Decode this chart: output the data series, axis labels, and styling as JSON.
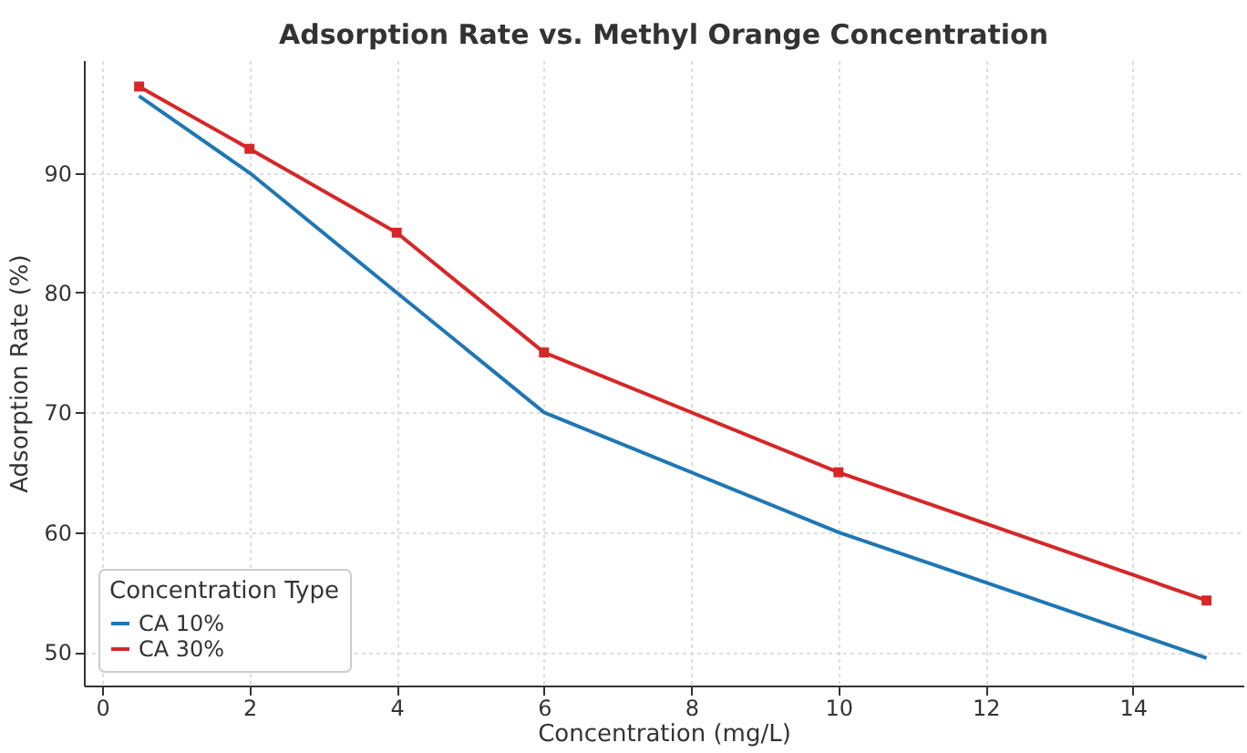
{
  "chart_data": {
    "type": "line",
    "title": "Adsorption Rate vs. Methyl Orange Concentration",
    "xlabel": "Concentration (mg/L)",
    "ylabel": "Adsorption Rate (%)",
    "legend_title": "Concentration Type",
    "x": [
      0.5,
      2,
      4,
      6,
      10,
      15
    ],
    "series": [
      {
        "name": "CA 10%",
        "color": "#1f77b4",
        "marker": "none",
        "values": [
          96.4,
          90,
          80,
          70,
          60,
          49.5
        ]
      },
      {
        "name": "CA 30%",
        "color": "#d62728",
        "marker": "square",
        "values": [
          97.2,
          92,
          85,
          75,
          65,
          54.3
        ]
      }
    ],
    "xlim": [
      -0.25,
      15.5
    ],
    "ylim": [
      47.2,
      99.4
    ],
    "xticks": [
      0,
      2,
      4,
      6,
      8,
      10,
      12,
      14
    ],
    "yticks": [
      50,
      60,
      70,
      80,
      90
    ],
    "grid": true,
    "legend": "bottom left",
    "line_style": "solid"
  }
}
